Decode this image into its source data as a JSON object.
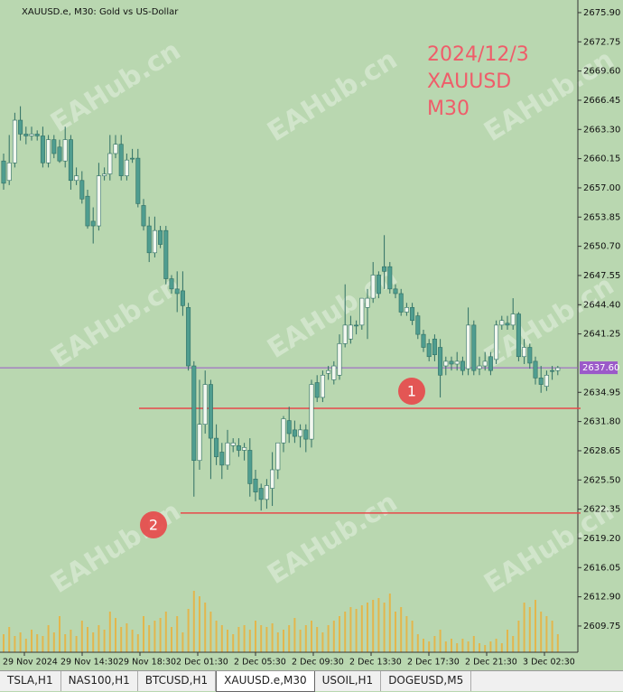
{
  "header": {
    "title": "XAUUSD.e, M30:  Gold vs US-Dollar"
  },
  "chart_data": {
    "type": "candlestick",
    "annotations": [
      "2024/12/3",
      "XAUUSD",
      "M30"
    ],
    "x_labels": [
      "29 Nov 2024",
      "29 Nov 14:30",
      "29 Nov 18:30",
      "2 Dec 01:30",
      "2 Dec 05:30",
      "2 Dec 09:30",
      "2 Dec 13:30",
      "2 Dec 17:30",
      "2 Dec 21:30",
      "3 Dec 02:30"
    ],
    "ylim": [
      2606.92,
      2677.26
    ],
    "yticks": [
      {
        "value": 2675.9,
        "label": "2675.90"
      },
      {
        "value": 2672.75,
        "label": "2672.75"
      },
      {
        "value": 2669.6,
        "label": "2669.60"
      },
      {
        "value": 2666.45,
        "label": "2666.45"
      },
      {
        "value": 2663.3,
        "label": "2663.30"
      },
      {
        "value": 2660.15,
        "label": "2660.15"
      },
      {
        "value": 2657.0,
        "label": "2657.00"
      },
      {
        "value": 2653.85,
        "label": "2653.85"
      },
      {
        "value": 2650.7,
        "label": "2650.70"
      },
      {
        "value": 2647.55,
        "label": "2647.55"
      },
      {
        "value": 2644.4,
        "label": "2644.40"
      },
      {
        "value": 2641.25,
        "label": "2641.25"
      },
      {
        "value": 2634.95,
        "label": "2634.95"
      },
      {
        "value": 2631.8,
        "label": "2631.80"
      },
      {
        "value": 2628.65,
        "label": "2628.65"
      },
      {
        "value": 2625.5,
        "label": "2625.50"
      },
      {
        "value": 2622.35,
        "label": "2622.35"
      },
      {
        "value": 2619.2,
        "label": "2619.20"
      },
      {
        "value": 2616.05,
        "label": "2616.05"
      },
      {
        "value": 2612.9,
        "label": "2612.90"
      },
      {
        "value": 2609.75,
        "label": "2609.75"
      }
    ],
    "current_price": {
      "value": 2637.6,
      "label": "2637.60"
    },
    "levels": [
      {
        "value": 2633.23,
        "label": "1"
      },
      {
        "value": 2621.93,
        "label": "2"
      }
    ],
    "colors": {
      "up": "#f2f7ef",
      "down": "#4f9d8f",
      "outline": "#2f6f64",
      "volume": "#e3b64c",
      "level": "#e8484a",
      "current": "#9b59c9",
      "annotation": "#ef5d6a"
    },
    "ohlc": [
      [
        2659.9,
        2660.7,
        2656.8,
        2657.5
      ],
      [
        2657.8,
        2662.7,
        2657.3,
        2659.7
      ],
      [
        2659.7,
        2665.1,
        2659.2,
        2664.3
      ],
      [
        2664.3,
        2665.8,
        2662.1,
        2662.8
      ],
      [
        2662.8,
        2663.6,
        2661.7,
        2662.6
      ],
      [
        2662.6,
        2663.6,
        2662.1,
        2662.8
      ],
      [
        2662.8,
        2663.2,
        2662.1,
        2662.6
      ],
      [
        2662.6,
        2663.6,
        2659.2,
        2659.7
      ],
      [
        2659.7,
        2662.7,
        2659.2,
        2662.2
      ],
      [
        2662.2,
        2662.7,
        2660.2,
        2660.7
      ],
      [
        2661.4,
        2662.2,
        2659.7,
        2659.9
      ],
      [
        2659.9,
        2663.6,
        2659.2,
        2662.2
      ],
      [
        2662.2,
        2662.7,
        2656.8,
        2657.8
      ],
      [
        2657.8,
        2659.2,
        2657.3,
        2658.3
      ],
      [
        2657.8,
        2658.8,
        2655.3,
        2655.8
      ],
      [
        2656.1,
        2656.8,
        2652.6,
        2652.9
      ],
      [
        2653.4,
        2654.9,
        2651.0,
        2652.9
      ],
      [
        2652.9,
        2659.7,
        2652.4,
        2658.3
      ],
      [
        2658.3,
        2659.2,
        2657.8,
        2658.5
      ],
      [
        2658.5,
        2662.7,
        2657.8,
        2660.7
      ],
      [
        2660.7,
        2662.7,
        2660.2,
        2661.7
      ],
      [
        2661.7,
        2662.7,
        2657.8,
        2658.3
      ],
      [
        2658.3,
        2660.7,
        2657.8,
        2660.0
      ],
      [
        2660.2,
        2661.2,
        2659.7,
        2660.1
      ],
      [
        2660.2,
        2661.2,
        2654.9,
        2655.3
      ],
      [
        2655.1,
        2655.8,
        2652.4,
        2652.9
      ],
      [
        2652.9,
        2653.9,
        2649.0,
        2650.0
      ],
      [
        2650.0,
        2653.9,
        2649.5,
        2652.4
      ],
      [
        2652.4,
        2652.9,
        2650.5,
        2650.9
      ],
      [
        2652.4,
        2652.9,
        2646.6,
        2647.2
      ],
      [
        2647.2,
        2647.6,
        2645.6,
        2646.1
      ],
      [
        2646.1,
        2648.0,
        2643.6,
        2645.6
      ],
      [
        2645.9,
        2648.0,
        2643.2,
        2644.3
      ],
      [
        2644.1,
        2644.6,
        2637.3,
        2637.8
      ],
      [
        2637.8,
        2638.3,
        2623.7,
        2627.6
      ],
      [
        2627.6,
        2636.3,
        2626.6,
        2631.5
      ],
      [
        2631.5,
        2637.3,
        2630.5,
        2635.8
      ],
      [
        2635.8,
        2636.3,
        2625.6,
        2630.0
      ],
      [
        2630.0,
        2631.5,
        2627.1,
        2628.0
      ],
      [
        2628.5,
        2629.5,
        2625.6,
        2627.1
      ],
      [
        2627.1,
        2630.9,
        2626.6,
        2629.5
      ],
      [
        2629.2,
        2630.0,
        2628.5,
        2629.5
      ],
      [
        2629.2,
        2630.0,
        2628.0,
        2628.7
      ],
      [
        2628.7,
        2629.5,
        2627.6,
        2629.0
      ],
      [
        2628.7,
        2630.0,
        2623.7,
        2625.1
      ],
      [
        2625.6,
        2626.6,
        2623.2,
        2624.2
      ],
      [
        2624.6,
        2625.1,
        2622.2,
        2623.4
      ],
      [
        2623.4,
        2625.6,
        2622.4,
        2624.9
      ],
      [
        2624.6,
        2628.5,
        2622.7,
        2626.6
      ],
      [
        2626.6,
        2629.5,
        2625.6,
        2629.5
      ],
      [
        2629.5,
        2632.4,
        2628.5,
        2632.1
      ],
      [
        2631.9,
        2633.4,
        2629.5,
        2630.5
      ],
      [
        2630.9,
        2631.9,
        2629.5,
        2630.2
      ],
      [
        2630.2,
        2631.5,
        2629.0,
        2630.9
      ],
      [
        2630.9,
        2631.5,
        2628.5,
        2629.9
      ],
      [
        2629.9,
        2636.3,
        2629.0,
        2635.8
      ],
      [
        2636.0,
        2636.8,
        2633.9,
        2634.4
      ],
      [
        2634.4,
        2637.3,
        2633.9,
        2636.8
      ],
      [
        2637.0,
        2637.8,
        2636.3,
        2637.3
      ],
      [
        2636.3,
        2638.3,
        2635.8,
        2637.8
      ],
      [
        2636.8,
        2641.2,
        2636.3,
        2640.2
      ],
      [
        2640.2,
        2646.6,
        2639.8,
        2642.2
      ],
      [
        2640.7,
        2643.2,
        2640.2,
        2642.2
      ],
      [
        2642.2,
        2642.7,
        2641.2,
        2642.1
      ],
      [
        2642.2,
        2645.1,
        2641.7,
        2645.1
      ],
      [
        2644.1,
        2646.1,
        2640.7,
        2645.1
      ],
      [
        2645.1,
        2649.0,
        2644.6,
        2647.6
      ],
      [
        2647.6,
        2648.0,
        2645.1,
        2645.6
      ],
      [
        2648.5,
        2651.9,
        2646.1,
        2648.0
      ],
      [
        2648.5,
        2649.0,
        2645.6,
        2646.1
      ],
      [
        2646.1,
        2646.6,
        2645.1,
        2645.6
      ],
      [
        2645.6,
        2646.1,
        2643.2,
        2643.6
      ],
      [
        2643.6,
        2644.6,
        2643.2,
        2644.1
      ],
      [
        2644.1,
        2644.6,
        2642.2,
        2642.7
      ],
      [
        2643.2,
        2643.6,
        2640.7,
        2641.2
      ],
      [
        2641.2,
        2641.7,
        2639.3,
        2639.8
      ],
      [
        2640.2,
        2640.7,
        2638.3,
        2638.8
      ],
      [
        2640.7,
        2641.2,
        2638.3,
        2639.0
      ],
      [
        2639.8,
        2640.7,
        2634.4,
        2636.8
      ],
      [
        2637.8,
        2638.8,
        2636.8,
        2638.3
      ],
      [
        2638.3,
        2638.8,
        2637.3,
        2638.0
      ],
      [
        2638.0,
        2639.3,
        2637.3,
        2638.3
      ],
      [
        2638.3,
        2638.8,
        2636.8,
        2637.3
      ],
      [
        2637.5,
        2644.1,
        2636.8,
        2642.2
      ],
      [
        2642.2,
        2642.7,
        2636.8,
        2637.3
      ],
      [
        2637.5,
        2638.8,
        2636.8,
        2637.8
      ],
      [
        2637.8,
        2639.3,
        2637.3,
        2638.3
      ],
      [
        2638.8,
        2639.3,
        2636.8,
        2637.3
      ],
      [
        2638.5,
        2642.7,
        2638.0,
        2642.2
      ],
      [
        2642.2,
        2643.2,
        2641.7,
        2642.7
      ],
      [
        2642.4,
        2643.2,
        2641.7,
        2642.2
      ],
      [
        2642.2,
        2645.1,
        2641.7,
        2643.4
      ],
      [
        2643.4,
        2643.6,
        2638.3,
        2638.8
      ],
      [
        2638.8,
        2640.7,
        2638.0,
        2639.8
      ],
      [
        2639.8,
        2640.2,
        2637.5,
        2638.1
      ],
      [
        2638.3,
        2638.8,
        2635.8,
        2636.5
      ],
      [
        2636.5,
        2637.8,
        2634.9,
        2635.8
      ],
      [
        2635.6,
        2637.3,
        2635.1,
        2636.8
      ],
      [
        2637.3,
        2637.8,
        2636.3,
        2637.2
      ],
      [
        2637.3,
        2637.8,
        2636.8,
        2637.6
      ]
    ],
    "volume": [
      20,
      28,
      18,
      22,
      15,
      25,
      20,
      18,
      30,
      22,
      40,
      20,
      25,
      18,
      35,
      28,
      22,
      30,
      25,
      45,
      38,
      28,
      32,
      25,
      20,
      40,
      30,
      35,
      38,
      45,
      28,
      40,
      22,
      48,
      68,
      62,
      55,
      45,
      35,
      30,
      25,
      20,
      28,
      30,
      25,
      35,
      30,
      28,
      32,
      22,
      25,
      30,
      38,
      25,
      30,
      35,
      28,
      22,
      30,
      35,
      40,
      45,
      50,
      48,
      52,
      55,
      58,
      60,
      55,
      65,
      45,
      50,
      40,
      35,
      20,
      15,
      12,
      18,
      25,
      12,
      15,
      10,
      15,
      12,
      18,
      10,
      8,
      12,
      15,
      10,
      25,
      18,
      35,
      55,
      50,
      58,
      45,
      40,
      35,
      20
    ]
  },
  "watermark": "EAHub.cn",
  "tabs": [
    "TSLA,H1",
    "NAS100,H1",
    "BTCUSD,H1",
    "XAUUSD.e,M30",
    "USOIL,H1",
    "DOGEUSD,M5"
  ],
  "active_tab": 3
}
